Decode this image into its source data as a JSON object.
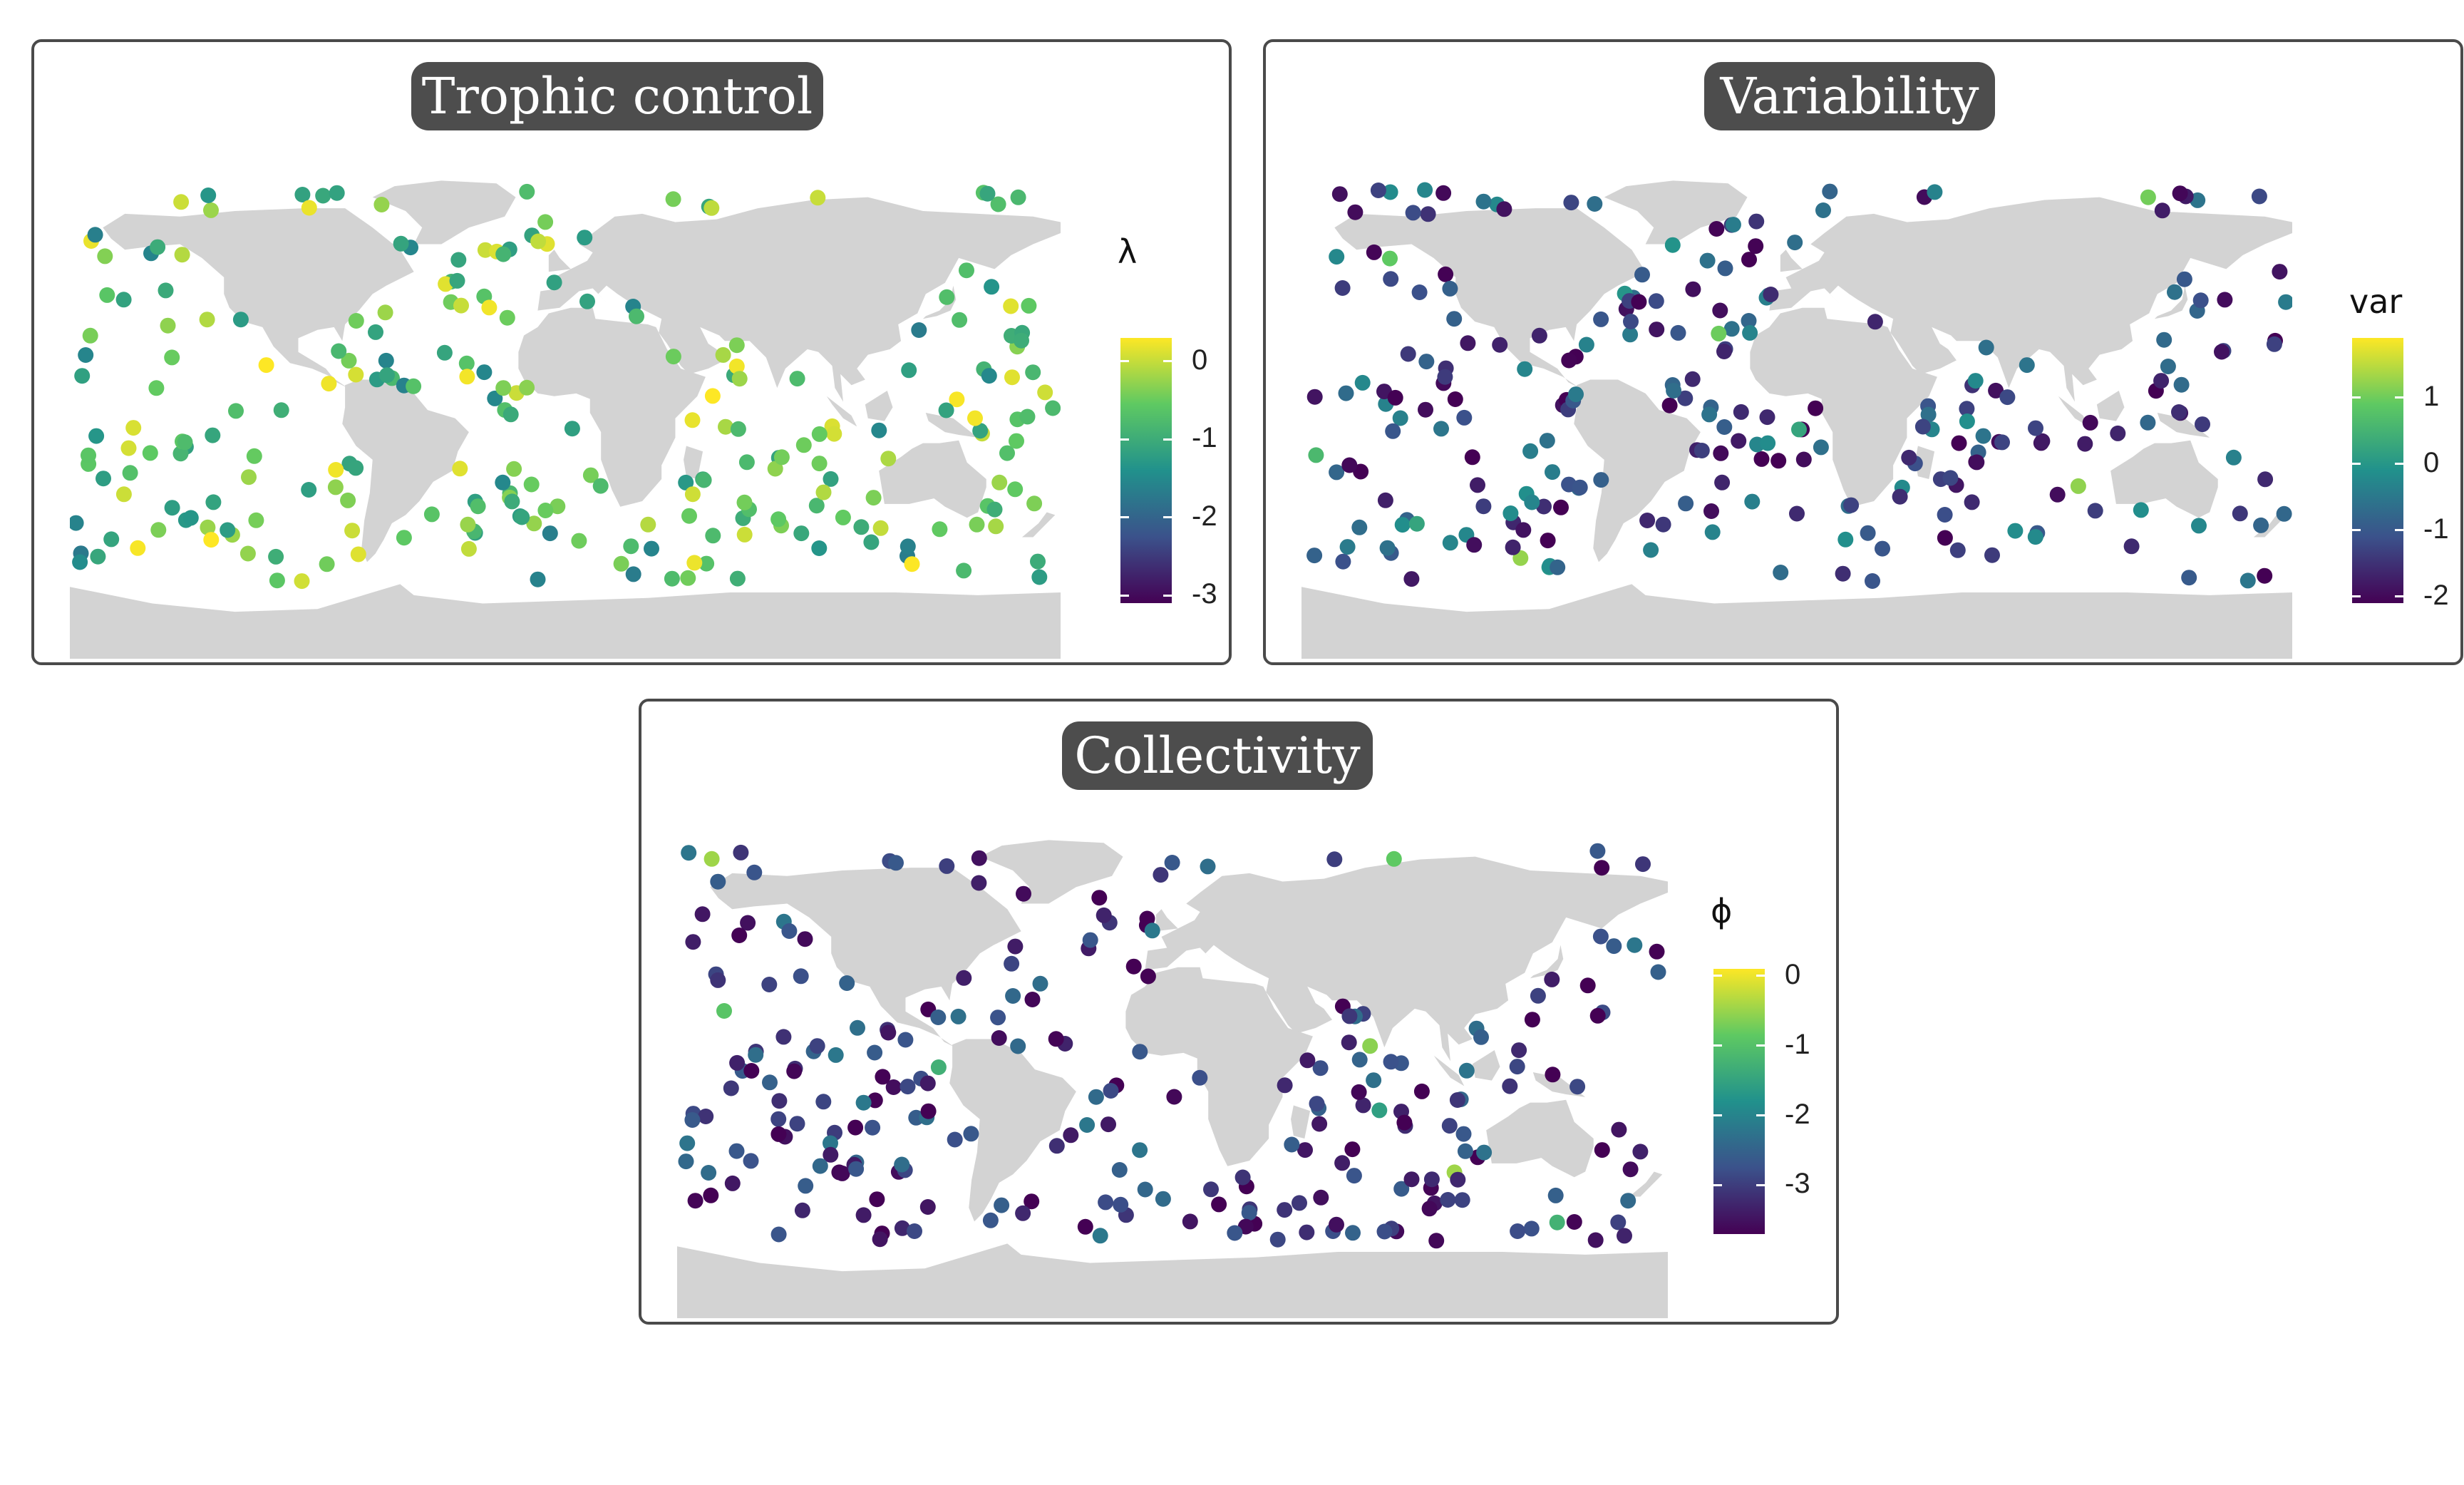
{
  "colors": {
    "land": "#d3d3d3",
    "panel_border": "#4a4a4a",
    "title_bg": "#4d4d4d",
    "title_text": "#ffffff",
    "viridis": [
      "#440154",
      "#3b528b",
      "#21918c",
      "#5ec962",
      "#fde725"
    ]
  },
  "chart_data": [
    {
      "type": "scatter",
      "title": "Trophic control",
      "legend": {
        "title": "λ",
        "placement": "right",
        "ticks": [
          {
            "value": 0,
            "label": "0"
          },
          {
            "value": -1,
            "label": "-1"
          },
          {
            "value": -2,
            "label": "-2"
          },
          {
            "value": -3,
            "label": "-3"
          }
        ],
        "range": [
          -3.1,
          0.3
        ]
      },
      "seed": 11,
      "color_profile": [
        0.62,
        0.86,
        0.08
      ]
    },
    {
      "type": "scatter",
      "title": "Variability",
      "legend": {
        "title": "var",
        "placement": "right",
        "ticks": [
          {
            "value": 1,
            "label": "1"
          },
          {
            "value": 0,
            "label": "0"
          },
          {
            "value": -1,
            "label": "-1"
          },
          {
            "value": -2,
            "label": "-2"
          }
        ],
        "range": [
          -2.1,
          1.9
        ]
      },
      "seed": 29,
      "color_profile": [
        0.22,
        0.55,
        0.85
      ]
    },
    {
      "type": "scatter",
      "title": "Collectivity",
      "legend": {
        "title": "ϕ",
        "placement": "right",
        "ticks": [
          {
            "value": 0,
            "label": "0"
          },
          {
            "value": -1,
            "label": "-1"
          },
          {
            "value": -2,
            "label": "-2"
          },
          {
            "value": -3,
            "label": "-3"
          }
        ],
        "range": [
          -3.7,
          0.1
        ]
      },
      "seed": 47,
      "color_profile": [
        0.18,
        0.45,
        0.9
      ]
    }
  ]
}
